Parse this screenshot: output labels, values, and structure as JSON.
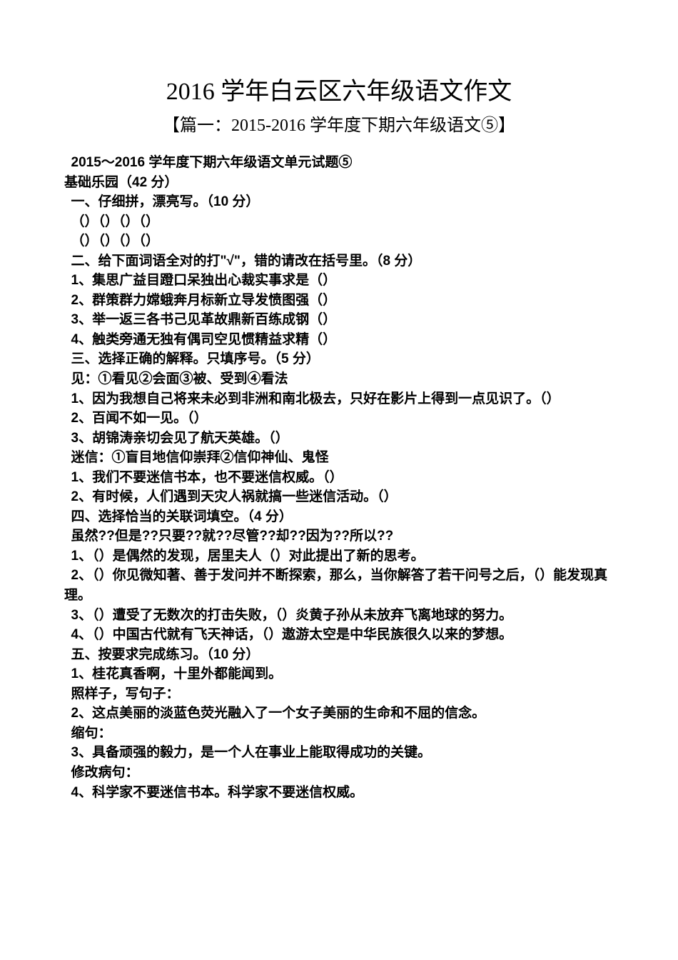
{
  "title": "2016 学年白云区六年级语文作文",
  "subtitle": "【篇一：2015-2016 学年度下期六年级语文⑤】",
  "lines": [
    "2015～2016 学年度下期六年级语文单元试题⑤",
    "基础乐园（42 分）",
    "一、仔细拼，漂亮写。（10 分）",
    "（）（）（）（）",
    "（）（）（）（）",
    "二、给下面词语全对的打\"√\"，错的请改在括号里。（8 分）",
    "1、集思广益目蹬口呆独出心裁实事求是（）",
    "2、群策群力嫦蛾奔月标新立导发愤图强（）",
    "3、举一返三各书己见革故鼎新百练成钢（）",
    "4、触类旁通无独有偶司空见惯精益求精（）",
    "三、选择正确的解释。只填序号。（5 分）",
    "见：①看见②会面③被、受到④看法",
    "1、因为我想自己将来未必到非洲和南北极去，只好在影片上得到一点见识了。（）",
    "2、百闻不如一见。（）",
    "3、胡锦涛亲切会见了航天英雄。（）",
    "迷信：①盲目地信仰崇拜②信仰神仙、鬼怪",
    "1、我们不要迷信书本，也不要迷信权威。（）",
    "2、有时候，人们遇到天灾人祸就搞一些迷信活动。（）",
    "四、选择恰当的关联词填空。（4 分）",
    "虽然??但是??只要??就??尽管??却??因为??所以??",
    "1、（）是偶然的发现，居里夫人（）对此提出了新的思考。",
    "2、（）你见微知著、善于发问并不断探索，那么，当你解答了若干问号之后，（）能发现真理。",
    "3、（）遭受了无数次的打击失败，（）炎黄子孙从未放弃飞离地球的努力。",
    "4、（）中国古代就有飞天神话，（）遨游太空是中华民族很久以来的梦想。",
    "五、按要求完成练习。（10 分）",
    "1、桂花真香啊，十里外都能闻到。",
    "照样子，写句子：",
    "2、这点美丽的淡蓝色荧光融入了一个女子美丽的生命和不屈的信念。",
    "缩句：",
    "3、具备顽强的毅力，是一个人在事业上能取得成功的关键。",
    "修改病句：",
    "4、科学家不要迷信书本。科学家不要迷信权威。"
  ]
}
